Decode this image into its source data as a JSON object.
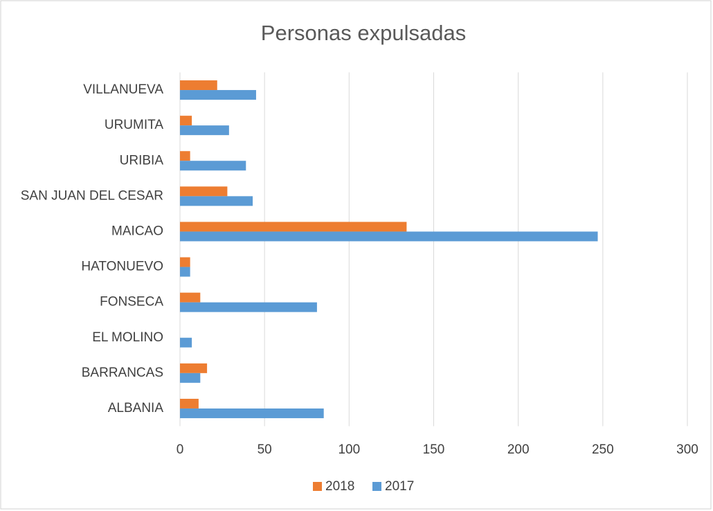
{
  "chart_data": {
    "type": "hbar",
    "title": "Personas expulsadas",
    "categories": [
      "ALBANIA",
      "BARRANCAS",
      "EL MOLINO",
      "FONSECA",
      "HATONUEVO",
      "MAICAO",
      "SAN JUAN DEL CESAR",
      "URIBIA",
      "URUMITA",
      "VILLANUEVA"
    ],
    "series": [
      {
        "name": "2018",
        "color": "#ed7d31",
        "values": [
          11,
          16,
          0,
          12,
          6,
          134,
          28,
          6,
          7,
          22
        ]
      },
      {
        "name": "2017",
        "color": "#5b9bd5",
        "values": [
          85,
          12,
          7,
          81,
          6,
          247,
          43,
          39,
          29,
          45
        ]
      }
    ],
    "xlim": [
      0,
      300
    ],
    "xticks": [
      0,
      50,
      100,
      150,
      200,
      250,
      300
    ],
    "grid": true,
    "legend": "bottom"
  }
}
